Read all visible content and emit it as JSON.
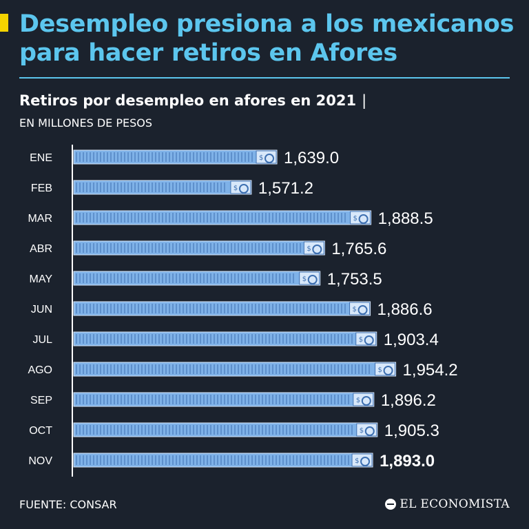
{
  "header": {
    "title": "Desempleo presiona a los mexicanos para hacer retiros en Afores"
  },
  "chart_data": {
    "type": "bar",
    "orientation": "horizontal",
    "title": "Retiros por desempleo en afores en 2021",
    "title_separator": "|",
    "units": "EN MILLONES DE PESOS",
    "categories": [
      "ENE",
      "FEB",
      "MAR",
      "ABR",
      "MAY",
      "JUN",
      "JUL",
      "AGO",
      "SEP",
      "OCT",
      "NOV"
    ],
    "values": [
      1639.0,
      1571.2,
      1888.5,
      1765.6,
      1753.5,
      1886.6,
      1903.4,
      1954.2,
      1896.2,
      1905.3,
      1893.0
    ],
    "labels": [
      "1,639.0",
      "1,571.2",
      "1,888.5",
      "1,765.6",
      "1,753.5",
      "1,886.6",
      "1,903.4",
      "1,954.2",
      "1,896.2",
      "1,905.3",
      "1,893.0"
    ],
    "highlight_category": "NOV",
    "bar_icon": "banknote-icon",
    "bar_color": "#7fb2e8",
    "xlim": [
      1100,
      2050
    ]
  },
  "footer": {
    "source": "FUENTE: CONSAR",
    "logo_text": "EL ECONOMISTA"
  },
  "colors": {
    "background": "#1b222d",
    "accent": "#5cc6ee",
    "highlight": "#f4d400"
  }
}
